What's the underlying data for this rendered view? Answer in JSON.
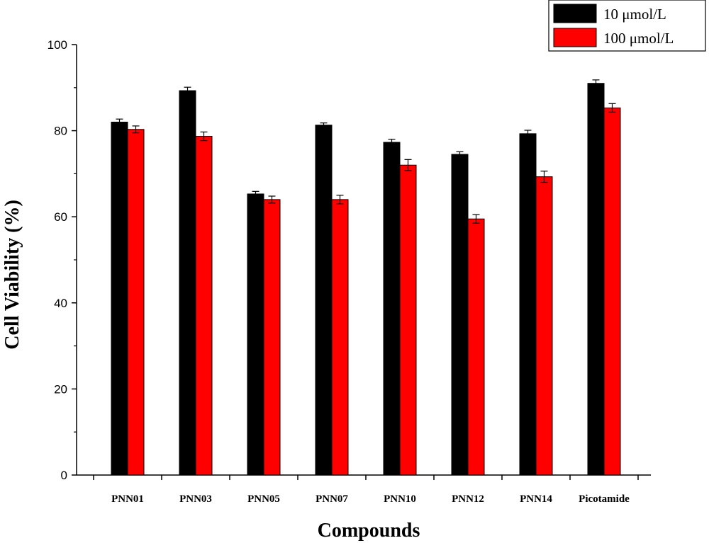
{
  "chart_data": {
    "type": "bar",
    "xlabel": "Compounds",
    "ylabel": "Cell Viability (%)",
    "ylim": [
      0,
      100
    ],
    "yticks": [
      "0",
      "20",
      "40",
      "60",
      "80",
      "100"
    ],
    "categories": [
      "PNN01",
      "PNN03",
      "PNN05",
      "PNN07",
      "PNN10",
      "PNN12",
      "PNN14",
      "Picotamide"
    ],
    "series": [
      {
        "name": "10 μmol/L",
        "color": "#000000",
        "values": [
          82.0,
          89.3,
          65.3,
          81.3,
          77.3,
          74.5,
          79.3,
          91.0
        ],
        "errors": [
          0.7,
          0.8,
          0.6,
          0.5,
          0.7,
          0.6,
          0.8,
          0.8
        ]
      },
      {
        "name": "100 μmol/L",
        "color": "#ff0000",
        "values": [
          80.3,
          78.7,
          64.0,
          64.0,
          72.0,
          59.5,
          69.3,
          85.3
        ],
        "errors": [
          0.8,
          1.0,
          0.8,
          1.0,
          1.3,
          1.0,
          1.3,
          1.0
        ]
      }
    ],
    "grid": false,
    "legend_position": "top-right"
  }
}
